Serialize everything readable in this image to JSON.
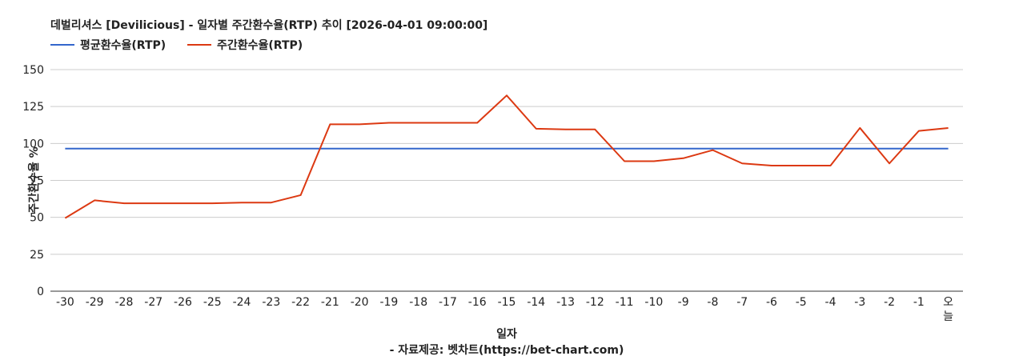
{
  "chart_data": {
    "type": "line",
    "title": "데벌리셔스 [Devilicious] - 일자별 주간환수율(RTP) 추이 [2026-04-01 09:00:00]",
    "xlabel": "일자",
    "ylabel": "주간환수율 %",
    "source": "- 자료제공: 벳차트(https://bet-chart.com)",
    "legend_position": "top-left",
    "grid": true,
    "ylim": [
      0,
      150
    ],
    "yticks": [
      0,
      25,
      50,
      75,
      100,
      125,
      150
    ],
    "categories": [
      "-30",
      "-29",
      "-28",
      "-27",
      "-26",
      "-25",
      "-24",
      "-23",
      "-22",
      "-21",
      "-20",
      "-19",
      "-18",
      "-17",
      "-16",
      "-15",
      "-14",
      "-13",
      "-12",
      "-11",
      "-10",
      "-9",
      "-8",
      "-7",
      "-6",
      "-5",
      "-4",
      "-3",
      "-2",
      "-1",
      "오늘"
    ],
    "series": [
      {
        "name": "평균환수율(RTP)",
        "color": "#3366cc",
        "values": [
          96.5,
          96.5,
          96.5,
          96.5,
          96.5,
          96.5,
          96.5,
          96.5,
          96.5,
          96.5,
          96.5,
          96.5,
          96.5,
          96.5,
          96.5,
          96.5,
          96.5,
          96.5,
          96.5,
          96.5,
          96.5,
          96.5,
          96.5,
          96.5,
          96.5,
          96.5,
          96.5,
          96.5,
          96.5,
          96.5,
          96.5
        ]
      },
      {
        "name": "주간환수율(RTP)",
        "color": "#dc3912",
        "values": [
          49.5,
          61.5,
          59.5,
          59.5,
          59.5,
          59.5,
          60,
          60,
          65,
          113,
          113,
          114,
          114,
          114,
          114,
          132.5,
          110,
          109.5,
          109.5,
          88,
          88,
          90,
          95.5,
          86.5,
          85,
          85,
          85,
          110.5,
          86.5,
          108.5,
          110.5
        ]
      }
    ]
  }
}
